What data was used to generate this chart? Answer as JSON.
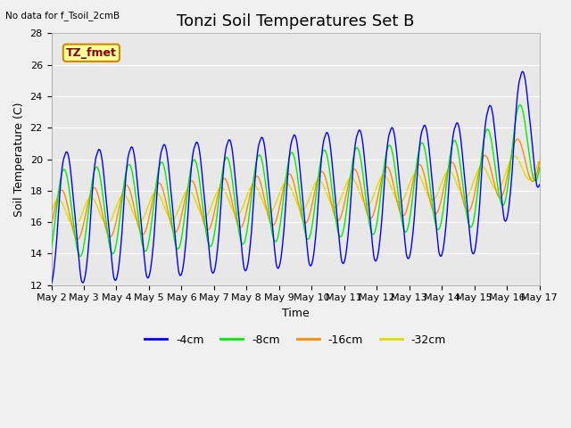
{
  "title": "Tonzi Soil Temperatures Set B",
  "xlabel": "Time",
  "ylabel": "Soil Temperature (C)",
  "top_left_text": "No data for f_Tsoil_2cmB",
  "annotation_box_text": "TZ_fmet",
  "annotation_box_text_color": "#8B0000",
  "annotation_box_bg": "#FFFF99",
  "annotation_box_border": "#CC8800",
  "ylim": [
    12,
    28
  ],
  "yticks": [
    12,
    14,
    16,
    18,
    20,
    22,
    24,
    26,
    28
  ],
  "colors": {
    "-4cm": "#0000FF",
    "-8cm": "#00EE00",
    "-16cm": "#FF8C00",
    "-32cm": "#DDDD00"
  },
  "legend_labels": [
    "-4cm",
    "-8cm",
    "-16cm",
    "-32cm"
  ],
  "legend_colors": [
    "#0000FF",
    "#00EE00",
    "#FF8C00",
    "#DDDD00"
  ],
  "background_color": "#E8E8E8",
  "fig_background_color": "#F0F0F0",
  "grid_color": "#FFFFFF",
  "xtick_labels": [
    "May 2",
    "May 3",
    "May 4",
    "May 5",
    "May 6",
    "May 7",
    "May 8",
    "May 9",
    "May 10",
    "May 11",
    "May 12",
    "May 13",
    "May 14",
    "May 15",
    "May 16",
    "May 17"
  ],
  "title_fontsize": 13,
  "axis_label_fontsize": 9,
  "tick_fontsize": 8,
  "legend_fontsize": 9,
  "figsize": [
    6.4,
    4.8
  ],
  "dpi": 100
}
